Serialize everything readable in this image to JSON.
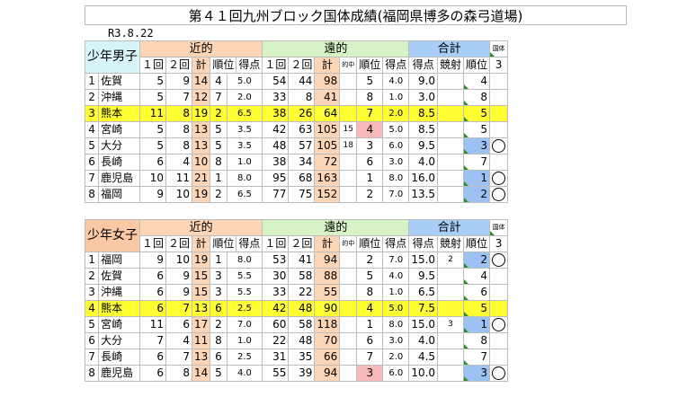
{
  "title": "第４１回九州ブロック国体成績(福岡県博多の森弓道場)",
  "date": "R3.8.22",
  "colors": {
    "boys_header": "#d7f5f9",
    "girls_header": "#fbc8a5",
    "kinteki": "#fbd5b5",
    "enteki": "#d8f2c8",
    "goukei": "#a8cdf7",
    "highlight": "#ffff33",
    "blue_rank": "#9bc2f2",
    "pink_rank": "#f7b9b9"
  },
  "headers": {
    "kinteki": "近的",
    "enteki": "遠的",
    "goukei": "合計",
    "first": "１回",
    "second": "２回",
    "total": "計",
    "rank": "順位",
    "points": "得点",
    "tekichu": "的中",
    "kyousha": "競射",
    "kokutai_label": "国体",
    "qual_count": "3"
  },
  "boys": {
    "label": "少年男子",
    "rows": [
      {
        "no": "1",
        "name": "佐賀",
        "k1": "5",
        "k2": "9",
        "kt": "14",
        "kr": "4",
        "kp": "5.0",
        "e1": "54",
        "e2": "44",
        "et": "98",
        "ek": "",
        "er": "5",
        "ep": "4.0",
        "pts": "9.0",
        "kyo": "",
        "rank": "4",
        "mark": "",
        "hl": false,
        "rankcolor": "",
        "ercolor": ""
      },
      {
        "no": "2",
        "name": "沖縄",
        "k1": "5",
        "k2": "7",
        "kt": "12",
        "kr": "7",
        "kp": "2.0",
        "e1": "33",
        "e2": "8",
        "et": "41",
        "ek": "",
        "er": "8",
        "ep": "1.0",
        "pts": "3.0",
        "kyo": "",
        "rank": "8",
        "mark": "",
        "hl": false,
        "rankcolor": "",
        "ercolor": ""
      },
      {
        "no": "3",
        "name": "熊本",
        "k1": "11",
        "k2": "8",
        "kt": "19",
        "kr": "2",
        "kp": "6.5",
        "e1": "38",
        "e2": "26",
        "et": "64",
        "ek": "",
        "er": "7",
        "ep": "2.0",
        "pts": "8.5",
        "kyo": "",
        "rank": "5",
        "mark": "",
        "hl": true,
        "rankcolor": "",
        "ercolor": ""
      },
      {
        "no": "4",
        "name": "宮崎",
        "k1": "5",
        "k2": "8",
        "kt": "13",
        "kr": "5",
        "kp": "3.5",
        "e1": "42",
        "e2": "63",
        "et": "105",
        "ek": "15",
        "er": "4",
        "ep": "5.0",
        "pts": "8.5",
        "kyo": "",
        "rank": "5",
        "mark": "",
        "hl": false,
        "rankcolor": "",
        "ercolor": "pink"
      },
      {
        "no": "5",
        "name": "大分",
        "k1": "5",
        "k2": "8",
        "kt": "13",
        "kr": "5",
        "kp": "3.5",
        "e1": "48",
        "e2": "57",
        "et": "105",
        "ek": "18",
        "er": "3",
        "ep": "6.0",
        "pts": "9.5",
        "kyo": "",
        "rank": "3",
        "mark": "○",
        "hl": false,
        "rankcolor": "blue",
        "ercolor": ""
      },
      {
        "no": "6",
        "name": "長崎",
        "k1": "6",
        "k2": "4",
        "kt": "10",
        "kr": "8",
        "kp": "1.0",
        "e1": "38",
        "e2": "34",
        "et": "72",
        "ek": "",
        "er": "6",
        "ep": "3.0",
        "pts": "4.0",
        "kyo": "",
        "rank": "7",
        "mark": "",
        "hl": false,
        "rankcolor": "",
        "ercolor": ""
      },
      {
        "no": "7",
        "name": "鹿児島",
        "k1": "10",
        "k2": "11",
        "kt": "21",
        "kr": "1",
        "kp": "8.0",
        "e1": "95",
        "e2": "68",
        "et": "163",
        "ek": "",
        "er": "1",
        "ep": "8.0",
        "pts": "16.0",
        "kyo": "",
        "rank": "1",
        "mark": "○",
        "hl": false,
        "rankcolor": "blue",
        "ercolor": ""
      },
      {
        "no": "8",
        "name": "福岡",
        "k1": "9",
        "k2": "10",
        "kt": "19",
        "kr": "2",
        "kp": "6.5",
        "e1": "77",
        "e2": "75",
        "et": "152",
        "ek": "",
        "er": "2",
        "ep": "7.0",
        "pts": "13.5",
        "kyo": "",
        "rank": "2",
        "mark": "○",
        "hl": false,
        "rankcolor": "blue",
        "ercolor": ""
      }
    ]
  },
  "girls": {
    "label": "少年女子",
    "rows": [
      {
        "no": "1",
        "name": "福岡",
        "k1": "9",
        "k2": "10",
        "kt": "19",
        "kr": "1",
        "kp": "8.0",
        "e1": "53",
        "e2": "41",
        "et": "94",
        "ek": "",
        "er": "2",
        "ep": "7.0",
        "pts": "15.0",
        "kyo": "2",
        "rank": "2",
        "mark": "○",
        "hl": false,
        "rankcolor": "blue",
        "ercolor": ""
      },
      {
        "no": "2",
        "name": "佐賀",
        "k1": "6",
        "k2": "9",
        "kt": "15",
        "kr": "3",
        "kp": "5.5",
        "e1": "30",
        "e2": "58",
        "et": "88",
        "ek": "",
        "er": "5",
        "ep": "4.0",
        "pts": "9.5",
        "kyo": "",
        "rank": "4",
        "mark": "",
        "hl": false,
        "rankcolor": "",
        "ercolor": ""
      },
      {
        "no": "3",
        "name": "沖縄",
        "k1": "6",
        "k2": "9",
        "kt": "15",
        "kr": "3",
        "kp": "5.5",
        "e1": "33",
        "e2": "22",
        "et": "55",
        "ek": "",
        "er": "8",
        "ep": "1.0",
        "pts": "6.5",
        "kyo": "",
        "rank": "6",
        "mark": "",
        "hl": false,
        "rankcolor": "",
        "ercolor": ""
      },
      {
        "no": "4",
        "name": "熊本",
        "k1": "6",
        "k2": "7",
        "kt": "13",
        "kr": "6",
        "kp": "2.5",
        "e1": "42",
        "e2": "48",
        "et": "90",
        "ek": "",
        "er": "4",
        "ep": "5.0",
        "pts": "7.5",
        "kyo": "",
        "rank": "5",
        "mark": "",
        "hl": true,
        "rankcolor": "",
        "ercolor": ""
      },
      {
        "no": "5",
        "name": "宮崎",
        "k1": "11",
        "k2": "6",
        "kt": "17",
        "kr": "2",
        "kp": "7.0",
        "e1": "60",
        "e2": "58",
        "et": "118",
        "ek": "",
        "er": "1",
        "ep": "8.0",
        "pts": "15.0",
        "kyo": "3",
        "rank": "1",
        "mark": "○",
        "hl": false,
        "rankcolor": "blue",
        "ercolor": ""
      },
      {
        "no": "6",
        "name": "大分",
        "k1": "7",
        "k2": "4",
        "kt": "11",
        "kr": "8",
        "kp": "1.0",
        "e1": "22",
        "e2": "48",
        "et": "70",
        "ek": "",
        "er": "6",
        "ep": "3.0",
        "pts": "4.0",
        "kyo": "",
        "rank": "8",
        "mark": "",
        "hl": false,
        "rankcolor": "",
        "ercolor": ""
      },
      {
        "no": "7",
        "name": "長崎",
        "k1": "6",
        "k2": "7",
        "kt": "13",
        "kr": "6",
        "kp": "2.5",
        "e1": "31",
        "e2": "35",
        "et": "66",
        "ek": "",
        "er": "7",
        "ep": "2.0",
        "pts": "4.5",
        "kyo": "",
        "rank": "7",
        "mark": "",
        "hl": false,
        "rankcolor": "",
        "ercolor": ""
      },
      {
        "no": "8",
        "name": "鹿児島",
        "k1": "6",
        "k2": "8",
        "kt": "14",
        "kr": "5",
        "kp": "4.0",
        "e1": "55",
        "e2": "39",
        "et": "94",
        "ek": "",
        "er": "3",
        "ep": "6.0",
        "pts": "10.0",
        "kyo": "",
        "rank": "3",
        "mark": "○",
        "hl": false,
        "rankcolor": "blue",
        "ercolor": "pink"
      }
    ]
  }
}
